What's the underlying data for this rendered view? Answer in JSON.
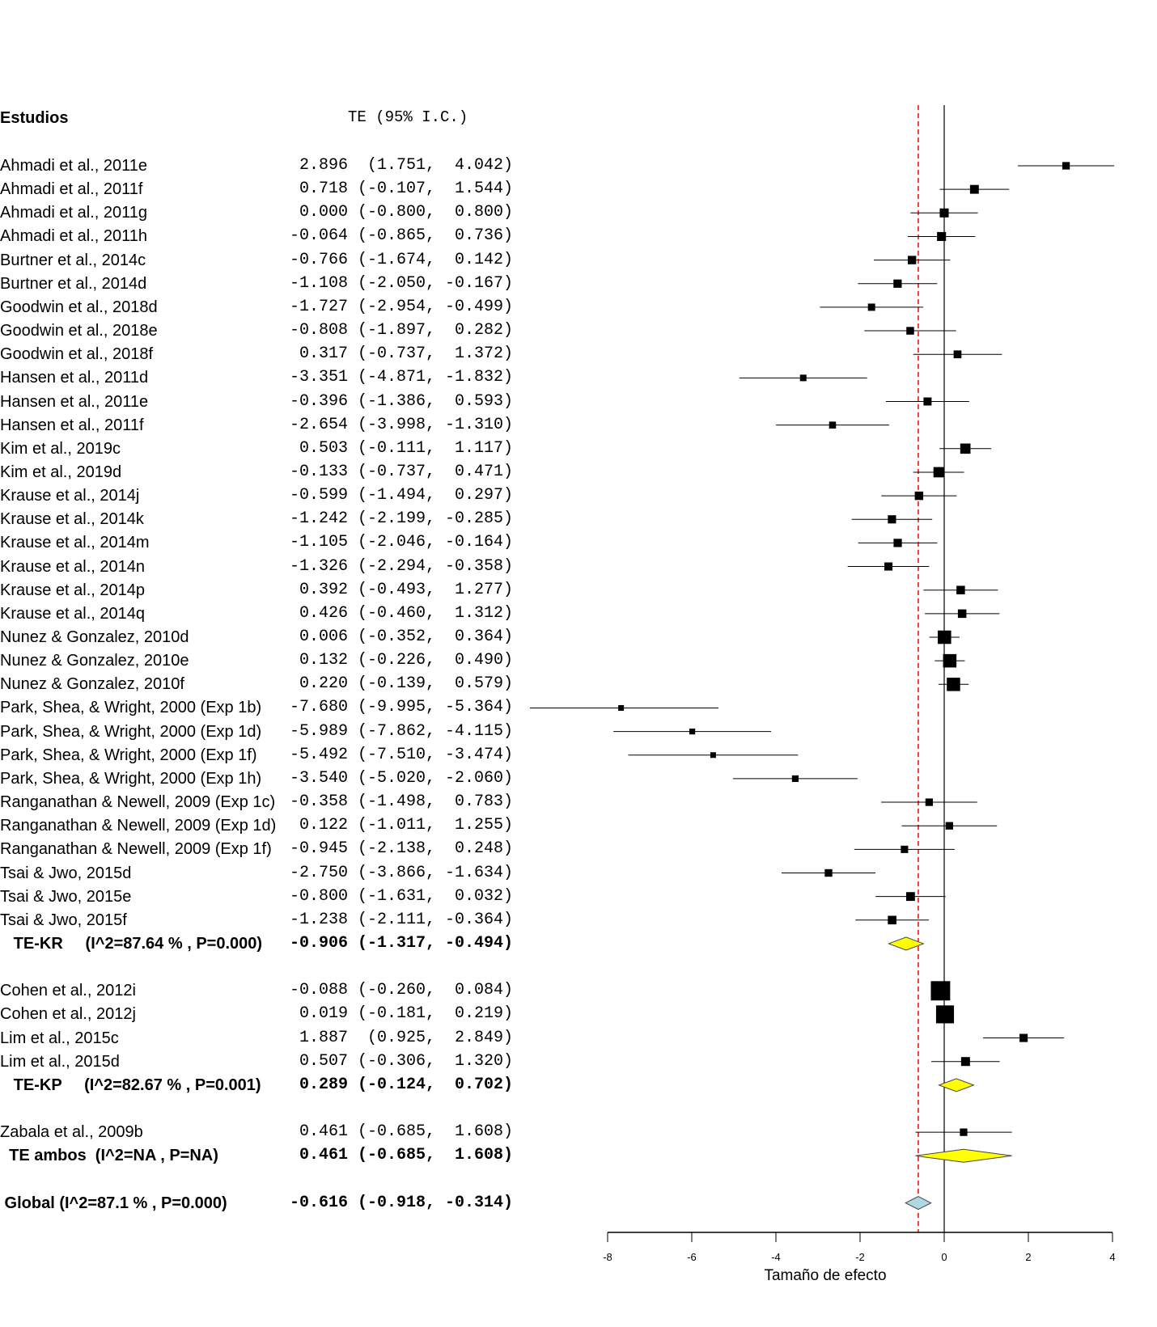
{
  "chart_data": {
    "type": "forest",
    "header_studies": "Estudios",
    "header_effect": "TE (95% I.C.)",
    "xlabel": "Tamaño de efecto",
    "xlim": [
      -8,
      4
    ],
    "xticks": [
      "-8",
      "-6",
      "-4",
      "-2",
      "0",
      "2",
      "4"
    ],
    "reference_line": 0,
    "overall_line": -0.616,
    "colors": {
      "box": "#000000",
      "subgroup_diamond": "#ffff00",
      "overall_diamond": "#add8e6",
      "overall_line": "#ff0000"
    },
    "rows": [
      {
        "label": "Ahmadi et al., 2011e",
        "text": " 2.896  (1.751,  4.042)",
        "es": 2.896,
        "lo": 1.751,
        "hi": 4.042,
        "kind": "study"
      },
      {
        "label": "Ahmadi et al., 2011f",
        "text": " 0.718 (-0.107,  1.544)",
        "es": 0.718,
        "lo": -0.107,
        "hi": 1.544,
        "kind": "study"
      },
      {
        "label": "Ahmadi et al., 2011g",
        "text": " 0.000 (-0.800,  0.800)",
        "es": 0.0,
        "lo": -0.8,
        "hi": 0.8,
        "kind": "study"
      },
      {
        "label": "Ahmadi et al., 2011h",
        "text": "-0.064 (-0.865,  0.736)",
        "es": -0.064,
        "lo": -0.865,
        "hi": 0.736,
        "kind": "study"
      },
      {
        "label": "Burtner et al., 2014c",
        "text": "-0.766 (-1.674,  0.142)",
        "es": -0.766,
        "lo": -1.674,
        "hi": 0.142,
        "kind": "study"
      },
      {
        "label": "Burtner et al., 2014d",
        "text": "-1.108 (-2.050, -0.167)",
        "es": -1.108,
        "lo": -2.05,
        "hi": -0.167,
        "kind": "study"
      },
      {
        "label": "Goodwin et al., 2018d",
        "text": "-1.727 (-2.954, -0.499)",
        "es": -1.727,
        "lo": -2.954,
        "hi": -0.499,
        "kind": "study"
      },
      {
        "label": "Goodwin et al., 2018e",
        "text": "-0.808 (-1.897,  0.282)",
        "es": -0.808,
        "lo": -1.897,
        "hi": 0.282,
        "kind": "study"
      },
      {
        "label": "Goodwin et al., 2018f",
        "text": " 0.317 (-0.737,  1.372)",
        "es": 0.317,
        "lo": -0.737,
        "hi": 1.372,
        "kind": "study"
      },
      {
        "label": "Hansen et al., 2011d",
        "text": "-3.351 (-4.871, -1.832)",
        "es": -3.351,
        "lo": -4.871,
        "hi": -1.832,
        "kind": "study"
      },
      {
        "label": "Hansen et al., 2011e",
        "text": "-0.396 (-1.386,  0.593)",
        "es": -0.396,
        "lo": -1.386,
        "hi": 0.593,
        "kind": "study"
      },
      {
        "label": "Hansen et al., 2011f",
        "text": "-2.654 (-3.998, -1.310)",
        "es": -2.654,
        "lo": -3.998,
        "hi": -1.31,
        "kind": "study"
      },
      {
        "label": "Kim et al., 2019c",
        "text": " 0.503 (-0.111,  1.117)",
        "es": 0.503,
        "lo": -0.111,
        "hi": 1.117,
        "kind": "study"
      },
      {
        "label": "Kim et al., 2019d",
        "text": "-0.133 (-0.737,  0.471)",
        "es": -0.133,
        "lo": -0.737,
        "hi": 0.471,
        "kind": "study"
      },
      {
        "label": "Krause et al., 2014j",
        "text": "-0.599 (-1.494,  0.297)",
        "es": -0.599,
        "lo": -1.494,
        "hi": 0.297,
        "kind": "study"
      },
      {
        "label": "Krause et al., 2014k",
        "text": "-1.242 (-2.199, -0.285)",
        "es": -1.242,
        "lo": -2.199,
        "hi": -0.285,
        "kind": "study"
      },
      {
        "label": "Krause et al., 2014m",
        "text": "-1.105 (-2.046, -0.164)",
        "es": -1.105,
        "lo": -2.046,
        "hi": -0.164,
        "kind": "study"
      },
      {
        "label": "Krause et al., 2014n",
        "text": "-1.326 (-2.294, -0.358)",
        "es": -1.326,
        "lo": -2.294,
        "hi": -0.358,
        "kind": "study"
      },
      {
        "label": "Krause et al., 2014p",
        "text": " 0.392 (-0.493,  1.277)",
        "es": 0.392,
        "lo": -0.493,
        "hi": 1.277,
        "kind": "study"
      },
      {
        "label": "Krause et al., 2014q",
        "text": " 0.426 (-0.460,  1.312)",
        "es": 0.426,
        "lo": -0.46,
        "hi": 1.312,
        "kind": "study"
      },
      {
        "label": "Nunez & Gonzalez, 2010d",
        "text": " 0.006 (-0.352,  0.364)",
        "es": 0.006,
        "lo": -0.352,
        "hi": 0.364,
        "kind": "study"
      },
      {
        "label": "Nunez & Gonzalez, 2010e",
        "text": " 0.132 (-0.226,  0.490)",
        "es": 0.132,
        "lo": -0.226,
        "hi": 0.49,
        "kind": "study"
      },
      {
        "label": "Nunez & Gonzalez, 2010f",
        "text": " 0.220 (-0.139,  0.579)",
        "es": 0.22,
        "lo": -0.139,
        "hi": 0.579,
        "kind": "study"
      },
      {
        "label": "Park, Shea, & Wright, 2000 (Exp 1b)",
        "text": "-7.680 (-9.995, -5.364)",
        "es": -7.68,
        "lo": -9.995,
        "hi": -5.364,
        "kind": "study"
      },
      {
        "label": "Park, Shea, & Wright, 2000 (Exp 1d)",
        "text": "-5.989 (-7.862, -4.115)",
        "es": -5.989,
        "lo": -7.862,
        "hi": -4.115,
        "kind": "study"
      },
      {
        "label": "Park, Shea, & Wright, 2000 (Exp 1f)",
        "text": "-5.492 (-7.510, -3.474)",
        "es": -5.492,
        "lo": -7.51,
        "hi": -3.474,
        "kind": "study"
      },
      {
        "label": "Park, Shea, & Wright, 2000 (Exp 1h)",
        "text": "-3.540 (-5.020, -2.060)",
        "es": -3.54,
        "lo": -5.02,
        "hi": -2.06,
        "kind": "study"
      },
      {
        "label": "Ranganathan & Newell, 2009 (Exp 1c)",
        "text": "-0.358 (-1.498,  0.783)",
        "es": -0.358,
        "lo": -1.498,
        "hi": 0.783,
        "kind": "study"
      },
      {
        "label": "Ranganathan & Newell, 2009 (Exp 1d)",
        "text": " 0.122 (-1.011,  1.255)",
        "es": 0.122,
        "lo": -1.011,
        "hi": 1.255,
        "kind": "study"
      },
      {
        "label": "Ranganathan & Newell, 2009 (Exp 1f)",
        "text": "-0.945 (-2.138,  0.248)",
        "es": -0.945,
        "lo": -2.138,
        "hi": 0.248,
        "kind": "study"
      },
      {
        "label": "Tsai & Jwo, 2015d",
        "text": "-2.750 (-3.866, -1.634)",
        "es": -2.75,
        "lo": -3.866,
        "hi": -1.634,
        "kind": "study"
      },
      {
        "label": "Tsai & Jwo, 2015e",
        "text": "-0.800 (-1.631,  0.032)",
        "es": -0.8,
        "lo": -1.631,
        "hi": 0.032,
        "kind": "study"
      },
      {
        "label": "Tsai & Jwo, 2015f",
        "text": "-1.238 (-2.111, -0.364)",
        "es": -1.238,
        "lo": -2.111,
        "hi": -0.364,
        "kind": "study"
      },
      {
        "label": "   TE-KR     (I^2=87.64 % , P=0.000)",
        "text": "-0.906 (-1.317, -0.494)",
        "es": -0.906,
        "lo": -1.317,
        "hi": -0.494,
        "kind": "subgroup"
      },
      null,
      {
        "label": "Cohen et al., 2012i",
        "text": "-0.088 (-0.260,  0.084)",
        "es": -0.088,
        "lo": -0.26,
        "hi": 0.084,
        "kind": "study"
      },
      {
        "label": "Cohen et al., 2012j",
        "text": " 0.019 (-0.181,  0.219)",
        "es": 0.019,
        "lo": -0.181,
        "hi": 0.219,
        "kind": "study"
      },
      {
        "label": "Lim et al., 2015c",
        "text": " 1.887  (0.925,  2.849)",
        "es": 1.887,
        "lo": 0.925,
        "hi": 2.849,
        "kind": "study"
      },
      {
        "label": "Lim et al., 2015d",
        "text": " 0.507 (-0.306,  1.320)",
        "es": 0.507,
        "lo": -0.306,
        "hi": 1.32,
        "kind": "study"
      },
      {
        "label": "   TE-KP     (I^2=82.67 % , P=0.001)",
        "text": " 0.289 (-0.124,  0.702)",
        "es": 0.289,
        "lo": -0.124,
        "hi": 0.702,
        "kind": "subgroup"
      },
      null,
      {
        "label": "Zabala et al., 2009b",
        "text": " 0.461 (-0.685,  1.608)",
        "es": 0.461,
        "lo": -0.685,
        "hi": 1.608,
        "kind": "study"
      },
      {
        "label": "  TE ambos  (I^2=NA , P=NA)",
        "text": " 0.461 (-0.685,  1.608)",
        "es": 0.461,
        "lo": -0.685,
        "hi": 1.608,
        "kind": "subgroup"
      },
      null,
      {
        "label": " Global (I^2=87.1 % , P=0.000)",
        "text": "-0.616 (-0.918, -0.314)",
        "es": -0.616,
        "lo": -0.918,
        "hi": -0.314,
        "kind": "overall"
      }
    ]
  }
}
